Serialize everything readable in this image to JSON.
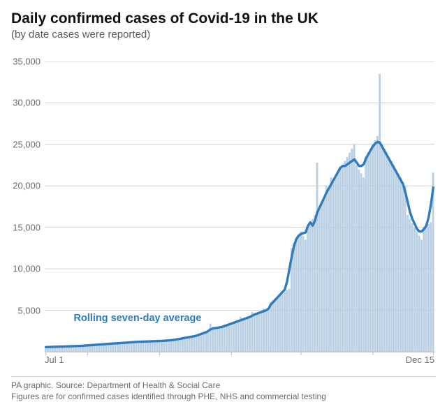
{
  "header": {
    "title": "Daily confirmed cases of Covid-19 in the UK",
    "subtitle": "(by date cases were reported)"
  },
  "chart": {
    "type": "bar+line",
    "background_color": "#ffffff",
    "grid_color": "#cfcfcf",
    "axis_color": "#bcbcbc",
    "bar_color": "#b8cfe4",
    "line_color": "#2e7bc0",
    "line_width": 3.4,
    "ylim": [
      0,
      35000
    ],
    "yticks": [
      0,
      5000,
      10000,
      15000,
      20000,
      25000,
      30000,
      35000
    ],
    "ytick_labels": [
      "",
      "5,000",
      "10,000",
      "15,000",
      "20,000",
      "25,000",
      "30,000",
      "35,000"
    ],
    "x_label_left": "Jul 1",
    "x_label_right": "Dec 15",
    "x_tick_pos": [
      0,
      18,
      49,
      80,
      110,
      141,
      167
    ],
    "legend": {
      "label": "Rolling seven-day average",
      "color": "#2e7bc0",
      "x_index": 12,
      "y_value": 4000
    },
    "bars": [
      550,
      560,
      570,
      580,
      590,
      600,
      610,
      620,
      630,
      640,
      650,
      660,
      670,
      680,
      690,
      700,
      720,
      740,
      760,
      780,
      800,
      820,
      840,
      860,
      880,
      900,
      920,
      940,
      960,
      980,
      1000,
      1020,
      1040,
      1060,
      1080,
      1100,
      1120,
      1140,
      1160,
      1180,
      1200,
      1210,
      1220,
      1230,
      1240,
      1250,
      1260,
      1270,
      1280,
      1290,
      1300,
      1320,
      1340,
      1360,
      1380,
      1400,
      1450,
      1500,
      1550,
      1600,
      1650,
      1700,
      1750,
      1800,
      1850,
      1900,
      2000,
      2100,
      2200,
      2300,
      2400,
      3400,
      2600,
      2700,
      2800,
      2900,
      3000,
      3100,
      3200,
      3300,
      3400,
      3500,
      3600,
      3700,
      4200,
      3900,
      4000,
      4100,
      4200,
      4800,
      4400,
      4500,
      4600,
      4700,
      5200,
      4900,
      5000,
      6000,
      6200,
      6400,
      6600,
      6800,
      7000,
      7200,
      7400,
      7600,
      12500,
      13000,
      13500,
      14000,
      14500,
      14000,
      13500,
      15000,
      15500,
      16000,
      16500,
      22800,
      17500,
      18000,
      18500,
      20000,
      19500,
      21000,
      20500,
      21000,
      21500,
      22000,
      22500,
      23000,
      23500,
      24000,
      24500,
      25000,
      22500,
      22000,
      21500,
      21000,
      23500,
      24000,
      24500,
      25000,
      25500,
      26000,
      33500,
      25000,
      24500,
      24000,
      23500,
      23000,
      22500,
      22000,
      21500,
      21000,
      20500,
      20000,
      16500,
      16000,
      15500,
      15000,
      14500,
      14000,
      13500,
      15000,
      15200,
      15400,
      15600,
      21600
    ],
    "rolling": [
      560,
      570,
      580,
      590,
      600,
      610,
      620,
      630,
      640,
      650,
      660,
      670,
      680,
      690,
      700,
      710,
      730,
      750,
      770,
      790,
      810,
      830,
      850,
      870,
      890,
      910,
      930,
      950,
      970,
      990,
      1010,
      1030,
      1050,
      1070,
      1090,
      1110,
      1130,
      1150,
      1170,
      1190,
      1205,
      1215,
      1225,
      1235,
      1245,
      1255,
      1265,
      1275,
      1285,
      1295,
      1310,
      1330,
      1350,
      1370,
      1390,
      1425,
      1475,
      1525,
      1575,
      1625,
      1675,
      1725,
      1775,
      1825,
      1875,
      1950,
      2050,
      2150,
      2250,
      2350,
      2500,
      2700,
      2800,
      2850,
      2900,
      2950,
      3000,
      3100,
      3200,
      3300,
      3400,
      3500,
      3600,
      3700,
      3800,
      3900,
      4000,
      4100,
      4200,
      4350,
      4500,
      4600,
      4700,
      4800,
      4900,
      5000,
      5200,
      5700,
      6000,
      6300,
      6600,
      6900,
      7200,
      7500,
      8500,
      10000,
      11500,
      12800,
      13600,
      14000,
      14200,
      14300,
      14400,
      15200,
      15600,
      15200,
      15800,
      16800,
      17400,
      18000,
      18600,
      19200,
      19700,
      20200,
      20700,
      21200,
      21700,
      22200,
      22400,
      22400,
      22600,
      22800,
      23000,
      23200,
      22800,
      22400,
      22400,
      22600,
      23300,
      23800,
      24300,
      24800,
      25100,
      25300,
      25200,
      24700,
      24200,
      23700,
      23200,
      22700,
      22200,
      21700,
      21200,
      20700,
      20200,
      19200,
      18000,
      16800,
      16000,
      15400,
      14800,
      14500,
      14500,
      14800,
      15200,
      16200,
      17800,
      19800
    ]
  },
  "footer": {
    "line1": "PA graphic. Source: Department of Health & Social Care",
    "line2": "Figures are for confirmed cases identified through PHE, NHS and commercial testing"
  }
}
